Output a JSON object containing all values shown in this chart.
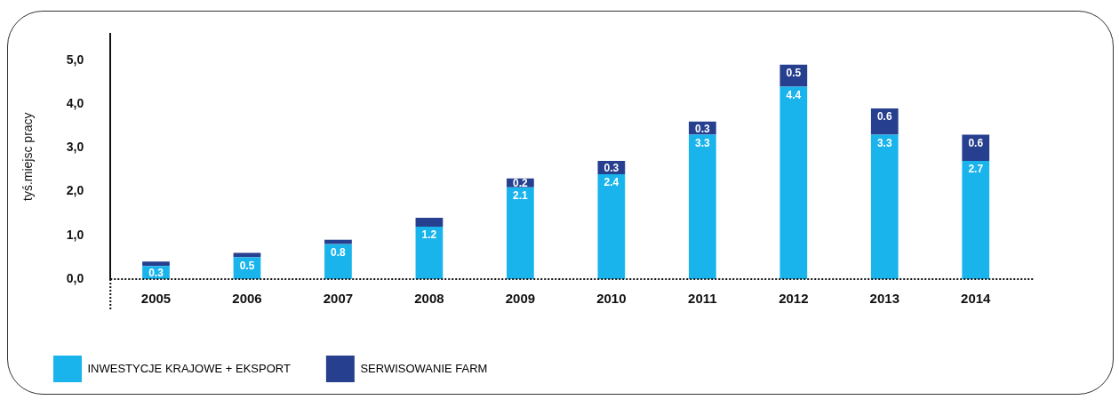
{
  "chart_data": {
    "type": "bar",
    "stacked": true,
    "ylabel": "tyś.miejsc pracy",
    "categories": [
      "2005",
      "2006",
      "2007",
      "2008",
      "2009",
      "2010",
      "2011",
      "2012",
      "2013",
      "2014"
    ],
    "series": [
      {
        "name": "INWESTYCJE KRAJOWE + EKSPORT",
        "color": "#1ab4ec",
        "values": [
          0.3,
          0.5,
          0.8,
          1.2,
          2.1,
          2.4,
          3.3,
          4.4,
          3.3,
          2.7
        ],
        "value_labels": [
          "0.3",
          "0.5",
          "0.8",
          "1.2",
          "2.1",
          "2.4",
          "3.3",
          "4.4",
          "3.3",
          "2.7"
        ]
      },
      {
        "name": "SERWISOWANIE FARM",
        "color": "#263f8f",
        "values": [
          0.1,
          0.1,
          0.1,
          0.2,
          0.2,
          0.3,
          0.3,
          0.5,
          0.6,
          0.6
        ],
        "value_labels": [
          null,
          null,
          null,
          null,
          "0.2",
          "0.3",
          "0.3",
          "0.5",
          "0.6",
          "0.6"
        ]
      }
    ],
    "ylim": [
      0,
      5.6
    ],
    "yticks": [
      {
        "value": 0,
        "label": "0,0"
      },
      {
        "value": 1,
        "label": "1,0"
      },
      {
        "value": 2,
        "label": "2,0"
      },
      {
        "value": 3,
        "label": "3,0"
      },
      {
        "value": 4,
        "label": "4,0"
      },
      {
        "value": 5,
        "label": "5,0"
      }
    ],
    "grid": false,
    "legend": "bottom"
  }
}
